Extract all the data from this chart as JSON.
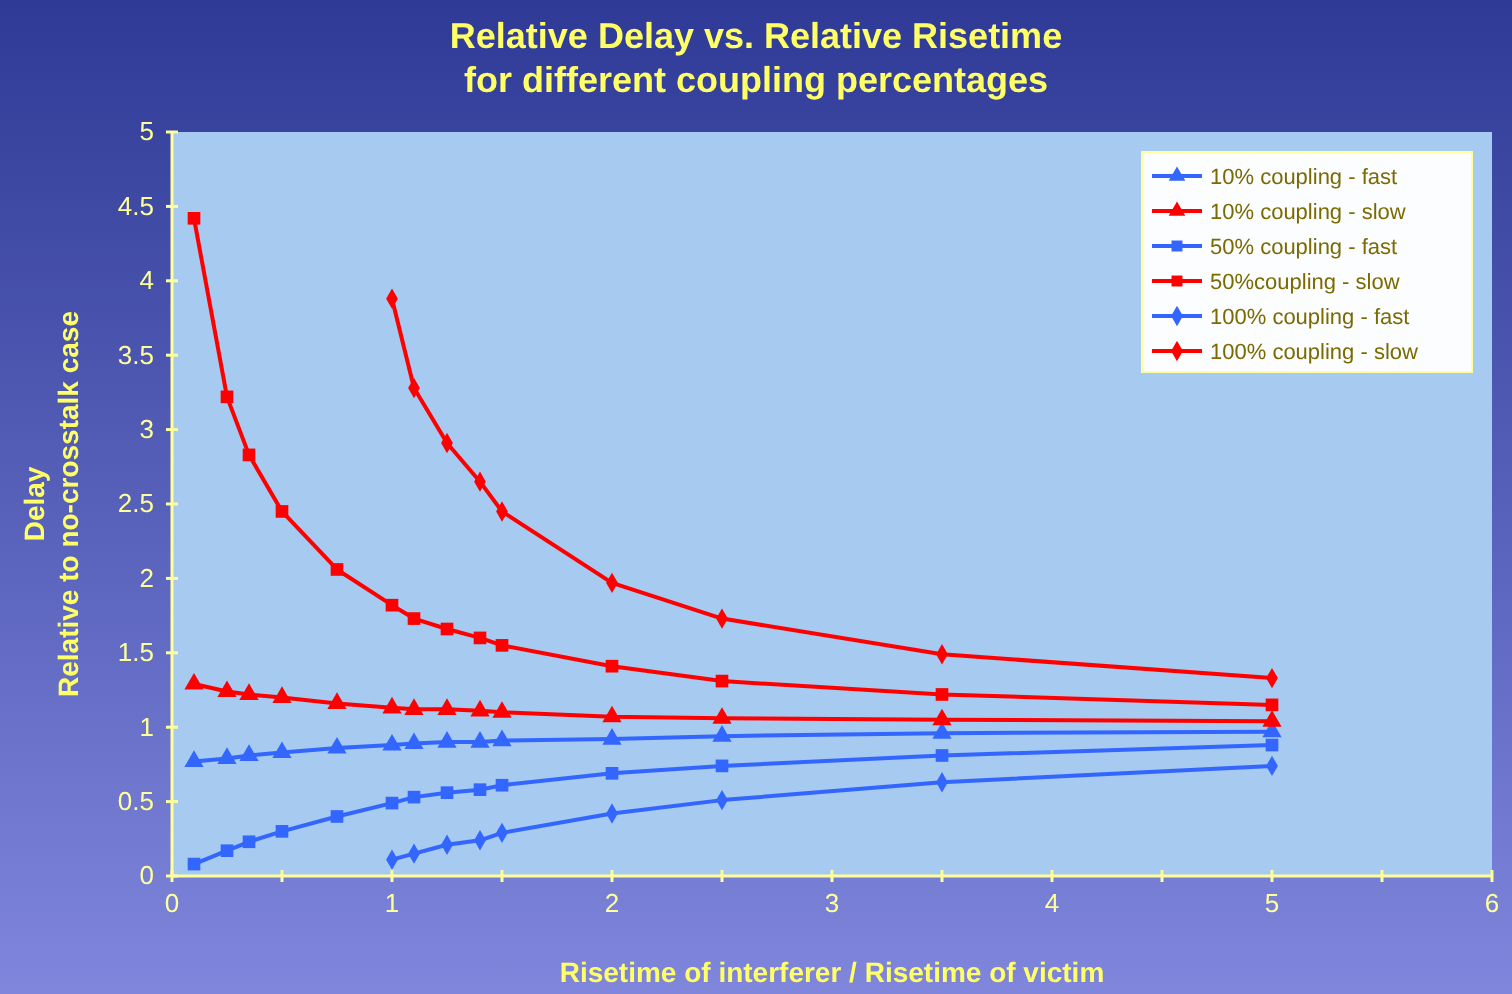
{
  "chart_data": {
    "type": "line",
    "title": "Relative Delay vs. Relative Risetime\nfor different coupling percentages",
    "xlabel": "Risetime of interferer / Risetime of victim",
    "ylabel": "Delay\nRelative to no-crosstalk case",
    "x": [
      0.1,
      0.25,
      0.35,
      0.5,
      0.75,
      1,
      1.1,
      1.25,
      1.4,
      1.5,
      2,
      2.5,
      3.5,
      5
    ],
    "series": [
      {
        "name": "10% coupling - fast",
        "color": "#3366ff",
        "marker": "triangle",
        "values": [
          0.77,
          0.79,
          0.81,
          0.83,
          0.86,
          0.88,
          0.89,
          0.9,
          0.9,
          0.91,
          0.92,
          0.94,
          0.96,
          0.97
        ]
      },
      {
        "name": "10% coupling - slow",
        "color": "#ff0000",
        "marker": "triangle",
        "values": [
          1.29,
          1.24,
          1.22,
          1.2,
          1.16,
          1.13,
          1.12,
          1.12,
          1.11,
          1.1,
          1.07,
          1.06,
          1.05,
          1.04
        ]
      },
      {
        "name": "50% coupling - fast",
        "color": "#3366ff",
        "marker": "square",
        "values": [
          0.08,
          0.17,
          0.23,
          0.3,
          0.4,
          0.49,
          0.53,
          0.56,
          0.58,
          0.61,
          0.69,
          0.74,
          0.81,
          0.88
        ]
      },
      {
        "name": "50%coupling - slow",
        "color": "#ff0000",
        "marker": "square",
        "values": [
          4.42,
          3.22,
          2.83,
          2.45,
          2.06,
          1.82,
          1.73,
          1.66,
          1.6,
          1.55,
          1.41,
          1.31,
          1.22,
          1.15
        ]
      },
      {
        "name": "100% coupling - fast",
        "color": "#3366ff",
        "marker": "diamond",
        "x": [
          1,
          1.1,
          1.25,
          1.4,
          1.5,
          2,
          2.5,
          3.5,
          5
        ],
        "values": [
          0.11,
          0.15,
          0.21,
          0.24,
          0.29,
          0.42,
          0.51,
          0.63,
          0.74
        ]
      },
      {
        "name": "100% coupling - slow",
        "color": "#ff0000",
        "marker": "diamond",
        "x": [
          1,
          1.1,
          1.25,
          1.4,
          1.5,
          2,
          2.5,
          3.5,
          5
        ],
        "values": [
          3.88,
          3.28,
          2.91,
          2.65,
          2.45,
          1.97,
          1.73,
          1.49,
          1.33
        ]
      }
    ],
    "xlim": [
      0,
      6
    ],
    "xticks": [
      0,
      {
        "value": 0.5,
        "label": null
      },
      1,
      {
        "value": 1.5,
        "label": null
      },
      2,
      {
        "value": 2.5,
        "label": null
      },
      3,
      {
        "value": 3.5,
        "label": null
      },
      4,
      {
        "value": 4.5,
        "label": null
      },
      5,
      {
        "value": 5.5,
        "label": null
      },
      6
    ],
    "ylim": [
      0,
      5
    ],
    "yticks": [
      0,
      0.5,
      1,
      1.5,
      2,
      2.5,
      3,
      3.5,
      4,
      4.5,
      5
    ],
    "grid": false,
    "legend": "top right",
    "line_style": "solid"
  }
}
